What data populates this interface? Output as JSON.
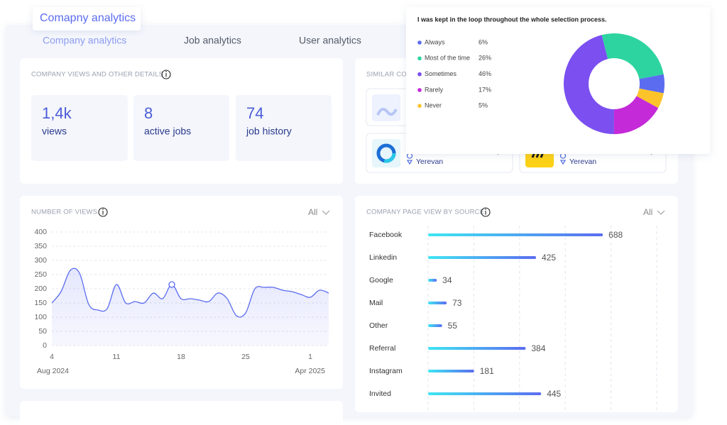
{
  "floating_label": "Comapny analytics",
  "tabs": [
    "Company analytics",
    "Job analytics",
    "User analytics"
  ],
  "company_details": {
    "title": "COMPANY VIEWS AND OTHER DETAILS",
    "stats": [
      {
        "value": "1,4k",
        "label": "views"
      },
      {
        "value": "8",
        "label": "active jobs"
      },
      {
        "value": "74",
        "label": "job history"
      }
    ]
  },
  "similar_companies": {
    "title": "SIMILAR COMPANIES",
    "companies": [
      {
        "location": "Yerevan"
      },
      {
        "location": "Yerevan"
      }
    ]
  },
  "chart_data": [
    {
      "type": "line",
      "title": "NUMBER OF VIEWS",
      "filter": "All",
      "period_start": "Aug 2024",
      "period_end": "Apr 2025",
      "categories": [
        "4",
        null,
        null,
        null,
        null,
        null,
        null,
        "11",
        null,
        null,
        null,
        null,
        null,
        null,
        "18",
        null,
        null,
        null,
        null,
        null,
        null,
        "25",
        null,
        null,
        null,
        null,
        null,
        null,
        "1",
        null,
        null
      ],
      "values": [
        150,
        190,
        265,
        255,
        145,
        125,
        130,
        215,
        150,
        155,
        150,
        185,
        165,
        215,
        165,
        165,
        160,
        155,
        185,
        165,
        105,
        115,
        200,
        205,
        205,
        195,
        190,
        180,
        170,
        195,
        185
      ],
      "color": "#5b6cf0",
      "ylim": [
        0,
        400
      ],
      "yticks": [
        0,
        50,
        100,
        150,
        200,
        250,
        300,
        350,
        400
      ],
      "grid": true
    },
    {
      "type": "bar",
      "orientation": "horizontal",
      "title": "COMPANY PAGE VIEW BY SOURCE",
      "filter": "All",
      "categories": [
        "Facebook",
        "Linkedin",
        "Google",
        "Mail",
        "Other",
        "Referral",
        "Instagram",
        "Invited"
      ],
      "values": [
        688,
        425,
        34,
        73,
        55,
        384,
        181,
        445
      ],
      "color": "#5b6cf0",
      "xlim": [
        0,
        900
      ]
    },
    {
      "type": "pie",
      "donut": true,
      "title": "I was kept in the loop throughout the whole selection process.",
      "categories": [
        "Always",
        "Most of the time",
        "Sometimes",
        "Rarely",
        "Never"
      ],
      "values": [
        6,
        26,
        46,
        17,
        5
      ],
      "value_labels": [
        "6%",
        "26%",
        "46%",
        "17%",
        "5%"
      ],
      "colors": [
        "#5b6cf0",
        "#2dd4a0",
        "#7b4ff0",
        "#c42ad8",
        "#fcc42a"
      ]
    }
  ]
}
